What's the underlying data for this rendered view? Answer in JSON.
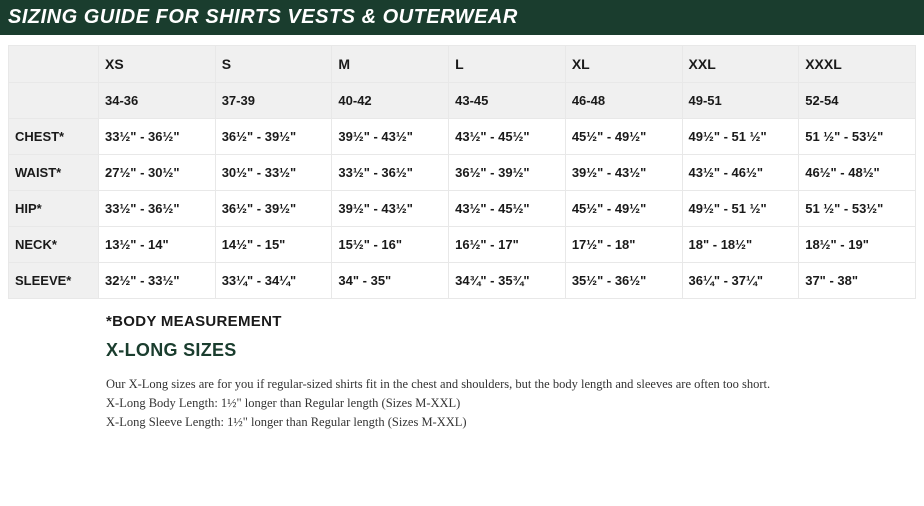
{
  "title": "SIZING GUIDE FOR SHIRTS VESTS & OUTERWEAR",
  "colors": {
    "header_bg": "#1a3d2e",
    "header_text": "#ffffff",
    "table_header_bg": "#f0f0f0",
    "border": "#e8e8e8",
    "text": "#1a1a1a",
    "accent": "#1a3d2e"
  },
  "table": {
    "sizes": [
      "XS",
      "S",
      "M",
      "L",
      "XL",
      "XXL",
      "XXXL"
    ],
    "ranges": [
      "34-36",
      "37-39",
      "40-42",
      "43-45",
      "46-48",
      "49-51",
      "52-54"
    ],
    "rows": [
      {
        "label": "CHEST*",
        "cells": [
          "33½\" - 36½\"",
          "36½\" - 39½\"",
          "39½\" - 43½\"",
          "43½\" - 45½\"",
          "45½\" - 49½\"",
          "49½\" - 51 ½\"",
          "51 ½\" - 53½\""
        ]
      },
      {
        "label": "WAIST*",
        "cells": [
          "27½\" - 30½\"",
          "30½\" - 33½\"",
          "33½\" - 36½\"",
          "36½\" - 39½\"",
          "39½\" - 43½\"",
          "43½\" - 46½\"",
          "46½\" - 48½\""
        ]
      },
      {
        "label": "HIP*",
        "cells": [
          "33½\" - 36½\"",
          "36½\" - 39½\"",
          "39½\" - 43½\"",
          "43½\" - 45½\"",
          "45½\" - 49½\"",
          "49½\" - 51 ½\"",
          "51 ½\" - 53½\""
        ]
      },
      {
        "label": "NECK*",
        "cells": [
          "13½\" - 14\"",
          "14½\" - 15\"",
          "15½\" - 16\"",
          "16½\" - 17\"",
          "17½\" - 18\"",
          "18\" - 18½\"",
          "18½\" - 19\""
        ]
      },
      {
        "label": "SLEEVE*",
        "cells": [
          "32½\" - 33½\"",
          "33¼\" - 34¼\"",
          "34\" - 35\"",
          "34¾\" - 35¾\"",
          "35½\" - 36½\"",
          "36¼\" - 37¼\"",
          "37\" - 38\""
        ]
      }
    ]
  },
  "notes": {
    "body_measurement": "*BODY MEASUREMENT",
    "xlong_heading": "X-LONG SIZES",
    "line1": "Our X-Long sizes are for you if regular-sized shirts fit in the chest and shoulders, but the body length and sleeves are often too short.",
    "line2": "X-Long Body Length: 1½\" longer than Regular length (Sizes M-XXL)",
    "line3": "X-Long Sleeve Length: 1½\" longer than Regular length (Sizes M-XXL)"
  }
}
